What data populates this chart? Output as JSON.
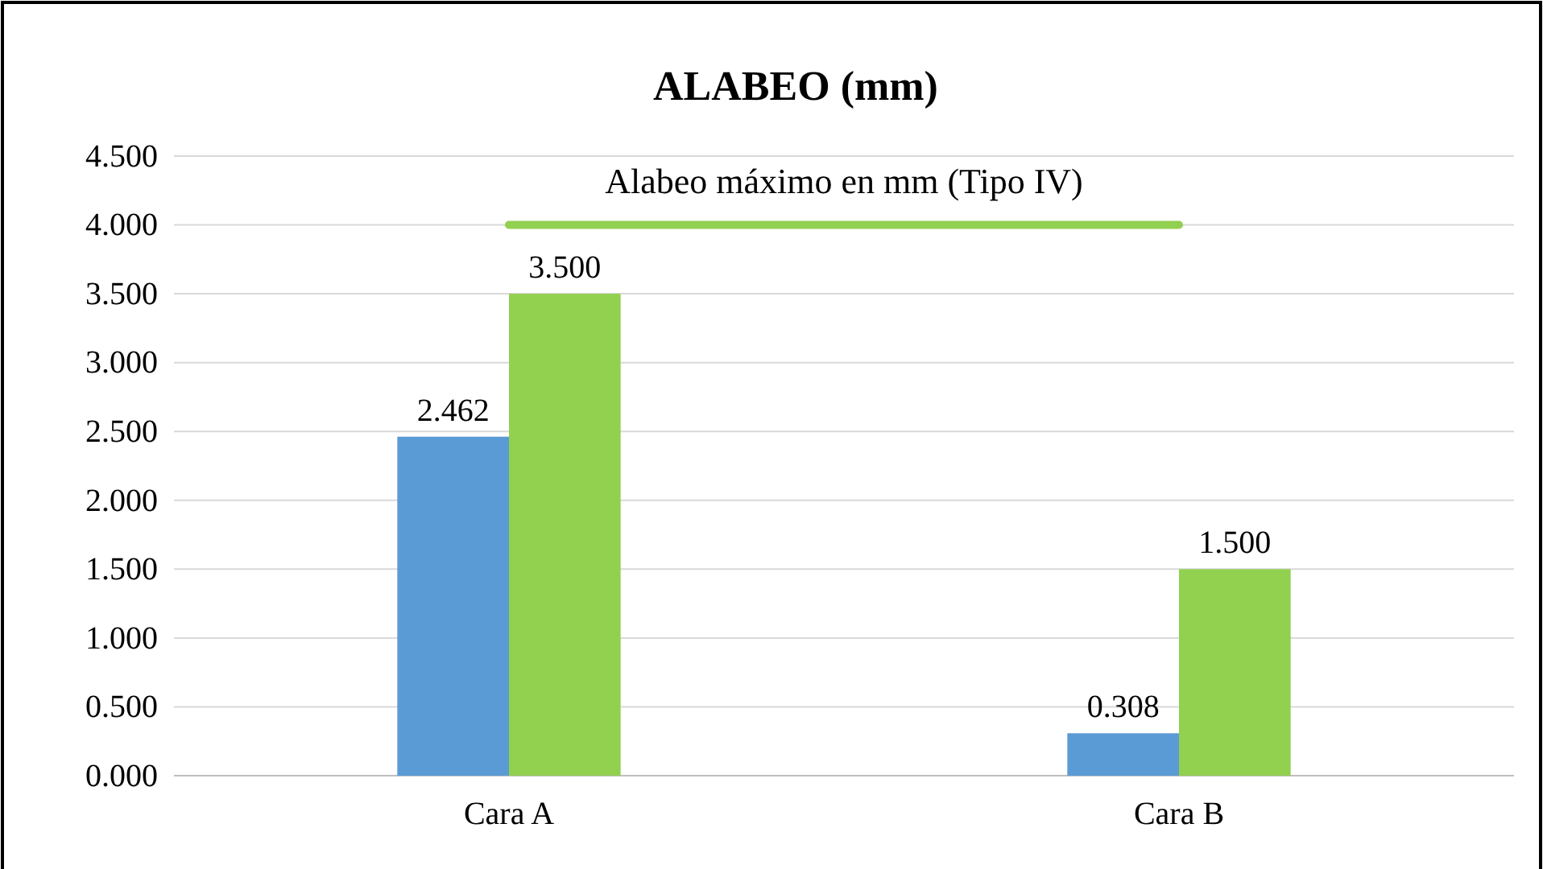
{
  "chart_data": {
    "type": "bar",
    "title": "ALABEO (mm)",
    "categories": [
      "Cara A",
      "Cara B"
    ],
    "series": [
      {
        "color": "#5b9bd5",
        "values": [
          2.462,
          0.308
        ],
        "value_labels": [
          "2.462",
          "0.308"
        ]
      },
      {
        "color": "#92d050",
        "values": [
          3.5,
          1.5
        ],
        "value_labels": [
          "3.500",
          "1.500"
        ]
      },
      {
        "type": "line",
        "name": "Alabeo máximo en mm (Tipo IV)",
        "color": "#92d050",
        "values": [
          4,
          4
        ]
      }
    ],
    "ylim": [
      0,
      4.5
    ],
    "yticks": [
      {
        "value": 0,
        "label": "0.000"
      },
      {
        "value": 0.5,
        "label": "0.500"
      },
      {
        "value": 1,
        "label": "1.000"
      },
      {
        "value": 1.5,
        "label": "1.500"
      },
      {
        "value": 2,
        "label": "2.000"
      },
      {
        "value": 2.5,
        "label": "2.500"
      },
      {
        "value": 3,
        "label": "3.000"
      },
      {
        "value": 3.5,
        "label": "3.500"
      },
      {
        "value": 4,
        "label": "4.000"
      },
      {
        "value": 4.5,
        "label": "4.500"
      }
    ],
    "grid": "y"
  }
}
